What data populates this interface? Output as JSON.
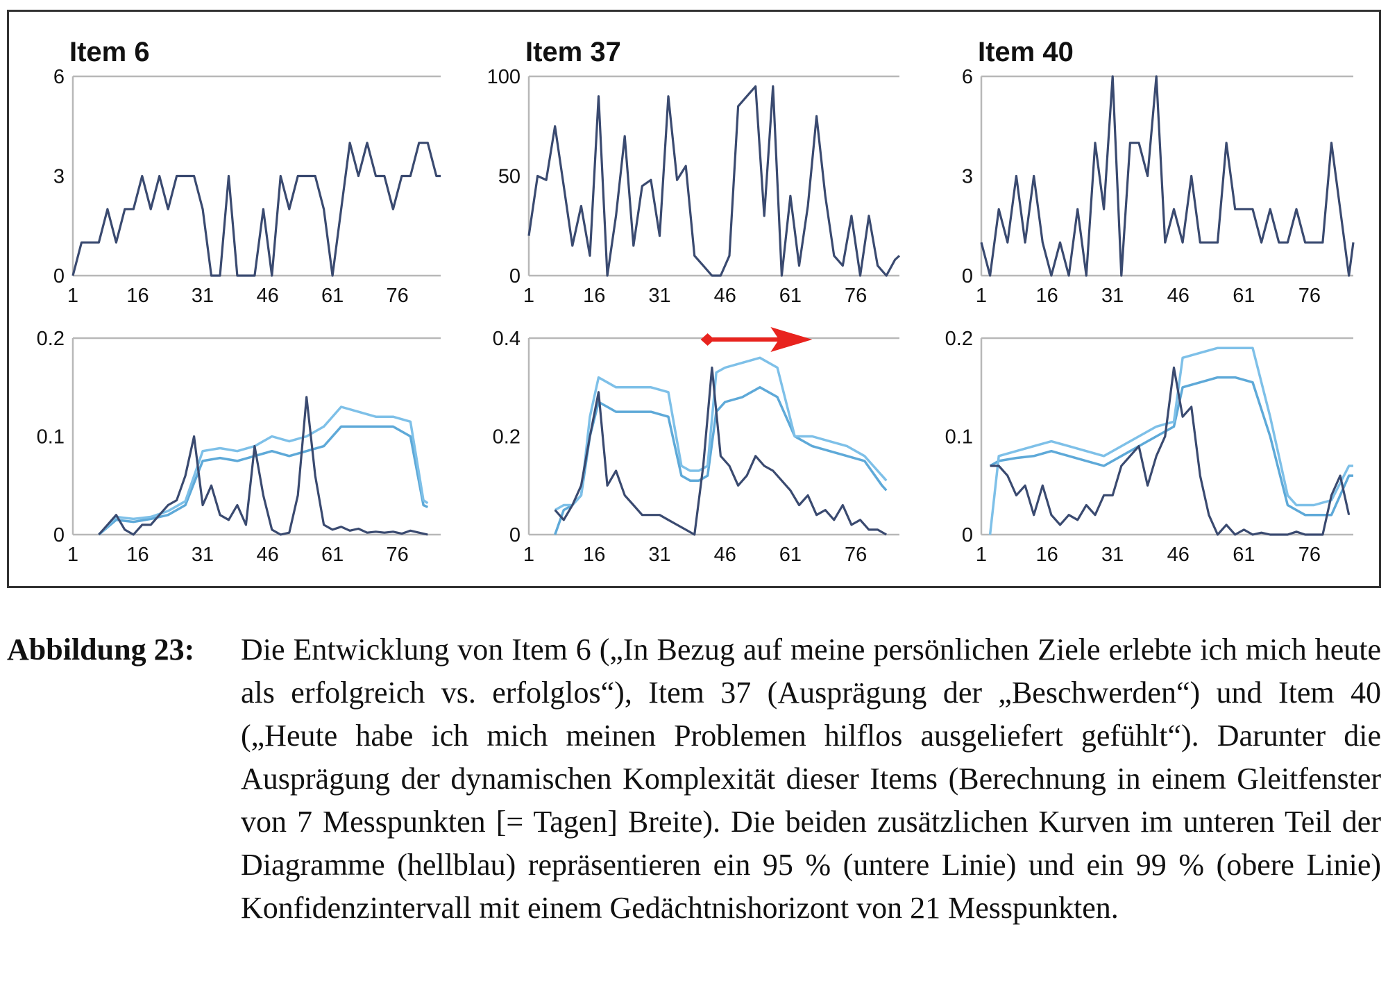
{
  "figure": {
    "label": "Abbildung 23:",
    "caption": "Die Entwicklung von Item 6 („In Bezug auf meine persönlichen Ziele erlebte ich mich heute als erfolgreich vs. erfolglos“), Item 37 (Ausprägung der „Beschwerden“) und Item 40 („Heute habe ich mich meinen Problemen hilflos ausgeliefert gefühlt“). Darunter die Ausprägung der dynamischen Komplexität dieser Items (Berechnung in einem Gleitfenster von 7 Messpunkten [= Tagen] Breite). Die beiden zusätzlichen Kurven im unteren Teil der Diagramme (hellblau) repräsentieren ein 95 % (untere Linie) und ein 99 % (obere Linie) Konfidenzintervall mit einem Gedächtnishorizont von 21 Messpunkten."
  },
  "colors": {
    "series_dark": "#3a4a70",
    "ci95": "#5ea9d8",
    "ci99": "#7ec0e8",
    "axes": "#b8b8b8",
    "arrow": "#e8231e"
  },
  "annotation": {
    "type": "red-arrow",
    "panel": 4,
    "direction": "right",
    "from_x": 42,
    "to_x": 66
  },
  "chart_data": [
    {
      "type": "line",
      "title": "Item 6",
      "xlim": [
        1,
        86
      ],
      "ylim": [
        0,
        6
      ],
      "xticks": [
        1,
        16,
        31,
        46,
        61,
        76
      ],
      "yticks": [
        0,
        3,
        6
      ],
      "series": [
        {
          "role": "data",
          "x": [
            1,
            3,
            5,
            7,
            9,
            11,
            13,
            15,
            17,
            19,
            21,
            23,
            25,
            27,
            29,
            31,
            33,
            35,
            37,
            39,
            41,
            43,
            45,
            47,
            49,
            51,
            53,
            55,
            57,
            59,
            61,
            63,
            65,
            67,
            69,
            71,
            73,
            75,
            77,
            79,
            81,
            83,
            85,
            86
          ],
          "y": [
            0,
            1,
            1,
            1,
            2,
            1,
            2,
            2,
            3,
            2,
            3,
            2,
            3,
            3,
            3,
            2,
            0,
            0,
            3,
            0,
            0,
            0,
            2,
            0,
            3,
            2,
            3,
            3,
            3,
            2,
            0,
            2,
            4,
            3,
            4,
            3,
            3,
            2,
            3,
            3,
            4,
            4,
            3,
            3
          ]
        }
      ]
    },
    {
      "type": "line",
      "title": "Item 37",
      "xlim": [
        1,
        86
      ],
      "ylim": [
        0,
        100
      ],
      "xticks": [
        1,
        16,
        31,
        46,
        61,
        76
      ],
      "yticks": [
        0,
        50,
        100
      ],
      "series": [
        {
          "role": "data",
          "x": [
            1,
            3,
            5,
            7,
            9,
            11,
            13,
            15,
            17,
            19,
            21,
            23,
            25,
            27,
            29,
            31,
            33,
            35,
            37,
            39,
            41,
            43,
            45,
            47,
            49,
            51,
            53,
            55,
            57,
            59,
            61,
            63,
            65,
            67,
            69,
            71,
            73,
            75,
            77,
            79,
            81,
            83,
            85,
            86
          ],
          "y": [
            20,
            50,
            48,
            75,
            45,
            15,
            35,
            10,
            90,
            0,
            30,
            70,
            15,
            45,
            48,
            20,
            90,
            48,
            55,
            10,
            5,
            0,
            0,
            10,
            85,
            90,
            95,
            30,
            95,
            0,
            40,
            5,
            35,
            80,
            40,
            10,
            5,
            30,
            0,
            30,
            5,
            0,
            8,
            10
          ]
        }
      ]
    },
    {
      "type": "line",
      "title": "Item 40",
      "xlim": [
        1,
        86
      ],
      "ylim": [
        0,
        6
      ],
      "xticks": [
        1,
        16,
        31,
        46,
        61,
        76
      ],
      "yticks": [
        0,
        3,
        6
      ],
      "series": [
        {
          "role": "data",
          "x": [
            1,
            3,
            5,
            7,
            9,
            11,
            13,
            15,
            17,
            19,
            21,
            23,
            25,
            27,
            29,
            31,
            33,
            35,
            37,
            39,
            41,
            43,
            45,
            47,
            49,
            51,
            53,
            55,
            57,
            59,
            61,
            63,
            65,
            67,
            69,
            71,
            73,
            75,
            77,
            79,
            81,
            83,
            85,
            86
          ],
          "y": [
            1,
            0,
            2,
            1,
            3,
            1,
            3,
            1,
            0,
            1,
            0,
            2,
            0,
            4,
            2,
            6,
            0,
            4,
            4,
            3,
            6,
            1,
            2,
            1,
            3,
            1,
            1,
            1,
            4,
            2,
            2,
            2,
            1,
            2,
            1,
            1,
            2,
            1,
            1,
            1,
            4,
            2,
            0,
            1
          ]
        }
      ]
    },
    {
      "type": "line",
      "xlim": [
        1,
        86
      ],
      "ylim": [
        0,
        0.2
      ],
      "xticks": [
        1,
        16,
        31,
        46,
        61,
        76
      ],
      "yticks": [
        0,
        0.1,
        0.2
      ],
      "series": [
        {
          "role": "complexity",
          "x": [
            7,
            9,
            11,
            13,
            15,
            17,
            19,
            21,
            23,
            25,
            27,
            29,
            31,
            33,
            35,
            37,
            39,
            41,
            43,
            45,
            47,
            49,
            51,
            53,
            55,
            57,
            59,
            61,
            63,
            65,
            67,
            69,
            71,
            73,
            75,
            77,
            79,
            81,
            83
          ],
          "y": [
            0,
            0.01,
            0.02,
            0.005,
            0,
            0.01,
            0.01,
            0.02,
            0.03,
            0.035,
            0.06,
            0.1,
            0.03,
            0.05,
            0.02,
            0.015,
            0.03,
            0.01,
            0.09,
            0.04,
            0.005,
            0,
            0.002,
            0.04,
            0.14,
            0.06,
            0.01,
            0.005,
            0.008,
            0.004,
            0.006,
            0.002,
            0.003,
            0.002,
            0.003,
            0.001,
            0.004,
            0.002,
            0
          ]
        },
        {
          "role": "ci95",
          "x": [
            7,
            11,
            15,
            19,
            23,
            27,
            31,
            35,
            39,
            43,
            47,
            51,
            55,
            59,
            63,
            67,
            71,
            75,
            79,
            82,
            83
          ],
          "y": [
            0,
            0.015,
            0.013,
            0.016,
            0.02,
            0.03,
            0.075,
            0.078,
            0.075,
            0.08,
            0.085,
            0.08,
            0.085,
            0.09,
            0.11,
            0.11,
            0.11,
            0.11,
            0.1,
            0.03,
            0.028
          ]
        },
        {
          "role": "ci99",
          "x": [
            7,
            11,
            15,
            19,
            23,
            27,
            31,
            35,
            39,
            43,
            47,
            51,
            55,
            59,
            63,
            67,
            71,
            75,
            79,
            82,
            83
          ],
          "y": [
            0,
            0.018,
            0.016,
            0.018,
            0.024,
            0.034,
            0.085,
            0.088,
            0.085,
            0.09,
            0.1,
            0.095,
            0.1,
            0.11,
            0.13,
            0.125,
            0.12,
            0.12,
            0.115,
            0.035,
            0.032
          ]
        }
      ]
    },
    {
      "type": "line",
      "xlim": [
        1,
        86
      ],
      "ylim": [
        0,
        0.4
      ],
      "xticks": [
        1,
        16,
        31,
        46,
        61,
        76
      ],
      "yticks": [
        0,
        0.2,
        0.4
      ],
      "series": [
        {
          "role": "complexity",
          "x": [
            7,
            9,
            11,
            13,
            15,
            17,
            19,
            21,
            23,
            25,
            27,
            29,
            31,
            33,
            35,
            37,
            39,
            41,
            43,
            45,
            47,
            49,
            51,
            53,
            55,
            57,
            59,
            61,
            63,
            65,
            67,
            69,
            71,
            73,
            75,
            77,
            79,
            81,
            83
          ],
          "y": [
            0.05,
            0.03,
            0.06,
            0.1,
            0.2,
            0.29,
            0.1,
            0.13,
            0.08,
            0.06,
            0.04,
            0.04,
            0.04,
            0.03,
            0.02,
            0.01,
            0,
            0.14,
            0.34,
            0.16,
            0.14,
            0.1,
            0.12,
            0.16,
            0.14,
            0.13,
            0.11,
            0.09,
            0.06,
            0.08,
            0.04,
            0.05,
            0.03,
            0.06,
            0.02,
            0.03,
            0.01,
            0.01,
            0
          ]
        },
        {
          "role": "ci95",
          "x": [
            7,
            9,
            11,
            13,
            15,
            17,
            19,
            21,
            25,
            29,
            33,
            36,
            38,
            40,
            42,
            44,
            46,
            50,
            54,
            58,
            62,
            66,
            70,
            74,
            78,
            82,
            83
          ],
          "y": [
            0,
            0.05,
            0.06,
            0.08,
            0.2,
            0.27,
            0.26,
            0.25,
            0.25,
            0.25,
            0.24,
            0.12,
            0.11,
            0.11,
            0.12,
            0.25,
            0.27,
            0.28,
            0.3,
            0.28,
            0.2,
            0.18,
            0.17,
            0.16,
            0.15,
            0.1,
            0.09
          ]
        },
        {
          "role": "ci99",
          "x": [
            7,
            9,
            11,
            13,
            15,
            17,
            19,
            21,
            25,
            29,
            33,
            36,
            38,
            40,
            42,
            44,
            46,
            50,
            54,
            58,
            62,
            66,
            70,
            74,
            78,
            82,
            83
          ],
          "y": [
            0.05,
            0.06,
            0.06,
            0.08,
            0.24,
            0.32,
            0.31,
            0.3,
            0.3,
            0.3,
            0.29,
            0.14,
            0.13,
            0.13,
            0.14,
            0.33,
            0.34,
            0.35,
            0.36,
            0.34,
            0.2,
            0.2,
            0.19,
            0.18,
            0.16,
            0.12,
            0.11
          ]
        }
      ]
    },
    {
      "type": "line",
      "xlim": [
        1,
        86
      ],
      "ylim": [
        0,
        0.2
      ],
      "xticks": [
        1,
        16,
        31,
        46,
        61,
        76
      ],
      "yticks": [
        0,
        0.1,
        0.2
      ],
      "series": [
        {
          "role": "complexity",
          "x": [
            3,
            5,
            7,
            9,
            11,
            13,
            15,
            17,
            19,
            21,
            23,
            25,
            27,
            29,
            31,
            33,
            35,
            37,
            39,
            41,
            43,
            45,
            47,
            49,
            51,
            53,
            55,
            57,
            59,
            61,
            63,
            65,
            67,
            69,
            71,
            73,
            75,
            77,
            79,
            81,
            83,
            85
          ],
          "y": [
            0.07,
            0.07,
            0.06,
            0.04,
            0.05,
            0.02,
            0.05,
            0.02,
            0.01,
            0.02,
            0.015,
            0.03,
            0.02,
            0.04,
            0.04,
            0.07,
            0.08,
            0.09,
            0.05,
            0.08,
            0.1,
            0.17,
            0.12,
            0.13,
            0.06,
            0.02,
            0,
            0.01,
            0,
            0.005,
            0,
            0.002,
            0,
            0,
            0,
            0.003,
            0,
            0,
            0,
            0.04,
            0.06,
            0.02
          ]
        },
        {
          "role": "ci95",
          "x": [
            3,
            5,
            9,
            13,
            17,
            21,
            25,
            29,
            33,
            37,
            41,
            45,
            47,
            51,
            55,
            59,
            63,
            67,
            71,
            73,
            75,
            77,
            81,
            85,
            86
          ],
          "y": [
            0.07,
            0.075,
            0.078,
            0.08,
            0.085,
            0.08,
            0.075,
            0.07,
            0.08,
            0.09,
            0.1,
            0.11,
            0.15,
            0.155,
            0.16,
            0.16,
            0.155,
            0.1,
            0.03,
            0.025,
            0.02,
            0.02,
            0.02,
            0.06,
            0.06
          ]
        },
        {
          "role": "ci99",
          "x": [
            3,
            5,
            9,
            13,
            17,
            21,
            25,
            29,
            33,
            37,
            41,
            45,
            47,
            51,
            55,
            59,
            63,
            67,
            71,
            73,
            75,
            77,
            81,
            85,
            86
          ],
          "y": [
            0,
            0.08,
            0.085,
            0.09,
            0.095,
            0.09,
            0.085,
            0.08,
            0.09,
            0.1,
            0.11,
            0.115,
            0.18,
            0.185,
            0.19,
            0.19,
            0.19,
            0.12,
            0.04,
            0.03,
            0.03,
            0.03,
            0.035,
            0.07,
            0.07
          ]
        }
      ]
    }
  ]
}
